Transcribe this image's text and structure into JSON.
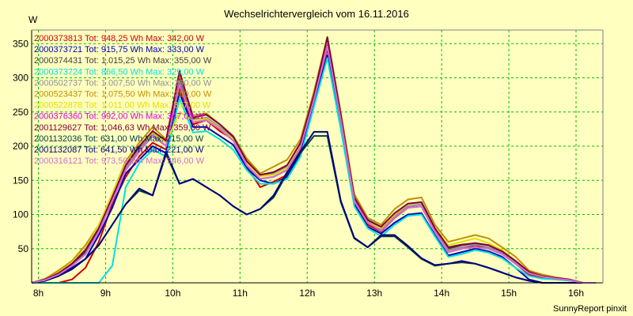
{
  "chart_data": {
    "type": "line",
    "title": "Wechselrichtervergleich vom 16.11.2016",
    "ylabel": "W",
    "xlabel": "",
    "footer": "SunnyReport pinxit",
    "ylim": [
      0,
      370
    ],
    "xlim": [
      7.9,
      16.4
    ],
    "grid": true,
    "legend_position": "top-left",
    "colors": {
      "background": "#ffffc0",
      "grid": "#00c000",
      "axis": "#000000"
    },
    "yticks": [
      {
        "value": 50,
        "label": "50"
      },
      {
        "value": 100,
        "label": "100"
      },
      {
        "value": 150,
        "label": "150"
      },
      {
        "value": 200,
        "label": "200"
      },
      {
        "value": 250,
        "label": "250"
      },
      {
        "value": 300,
        "label": "300"
      },
      {
        "value": 350,
        "label": "350"
      }
    ],
    "xticks": [
      {
        "value": 8,
        "label": "8h"
      },
      {
        "value": 9,
        "label": "9h"
      },
      {
        "value": 10,
        "label": "10h"
      },
      {
        "value": 11,
        "label": "11h"
      },
      {
        "value": 12,
        "label": "12h"
      },
      {
        "value": 13,
        "label": "13h"
      },
      {
        "value": 14,
        "label": "14h"
      },
      {
        "value": 15,
        "label": "15h"
      },
      {
        "value": 16,
        "label": "16h"
      }
    ],
    "x": [
      7.9,
      8.1,
      8.3,
      8.5,
      8.7,
      8.9,
      9.1,
      9.3,
      9.5,
      9.7,
      9.9,
      10.1,
      10.3,
      10.5,
      10.7,
      10.9,
      11.1,
      11.3,
      11.5,
      11.7,
      11.9,
      12.1,
      12.3,
      12.5,
      12.7,
      12.9,
      13.1,
      13.3,
      13.5,
      13.7,
      13.9,
      14.1,
      14.3,
      14.5,
      14.7,
      14.9,
      15.1,
      15.3,
      15.5,
      15.7,
      15.9,
      16.1,
      16.3
    ],
    "series": [
      {
        "name": "2000373813 Tot: 948,25 Wh Max: 342,00 W",
        "color": "#d00000",
        "values": [
          0,
          0,
          0,
          5,
          22,
          60,
          115,
          155,
          185,
          205,
          195,
          285,
          232,
          238,
          222,
          210,
          170,
          140,
          148,
          158,
          195,
          268,
          342,
          235,
          120,
          85,
          75,
          95,
          110,
          112,
          75,
          45,
          50,
          55,
          50,
          42,
          28,
          12,
          8,
          6,
          4,
          0,
          0
        ]
      },
      {
        "name": "2000373721 Tot: 915,75 Wh Max: 333,00 W",
        "color": "#0000c0",
        "values": [
          0,
          3,
          12,
          22,
          35,
          70,
          110,
          160,
          180,
          200,
          190,
          278,
          228,
          228,
          215,
          202,
          168,
          150,
          145,
          155,
          188,
          262,
          333,
          230,
          115,
          82,
          72,
          88,
          100,
          102,
          70,
          40,
          45,
          50,
          46,
          38,
          22,
          5,
          0,
          0,
          0,
          0,
          0
        ]
      },
      {
        "name": "2000374431 Tot: 1.015,25 Wh Max: 355,00 W",
        "color": "#404040",
        "values": [
          0,
          5,
          15,
          28,
          45,
          80,
          125,
          172,
          198,
          222,
          205,
          300,
          240,
          240,
          228,
          212,
          178,
          158,
          160,
          170,
          205,
          275,
          355,
          245,
          125,
          92,
          80,
          100,
          115,
          118,
          80,
          50,
          55,
          58,
          55,
          45,
          30,
          15,
          10,
          7,
          5,
          0,
          0
        ]
      },
      {
        "name": "2000373724 Tot: 866,50 Wh Max: 329,00 W",
        "color": "#00e0e0",
        "values": [
          0,
          0,
          0,
          0,
          0,
          0,
          25,
          140,
          175,
          195,
          185,
          270,
          220,
          222,
          210,
          195,
          165,
          145,
          145,
          152,
          185,
          258,
          329,
          225,
          112,
          80,
          68,
          85,
          98,
          100,
          68,
          38,
          42,
          48,
          44,
          36,
          22,
          10,
          6,
          5,
          3,
          0,
          0
        ]
      },
      {
        "name": "2000502737 Tot: 1.007,50 Wh Max: 360,00 W",
        "color": "#909090",
        "values": [
          0,
          4,
          12,
          25,
          42,
          75,
          120,
          168,
          195,
          218,
          200,
          295,
          238,
          242,
          228,
          212,
          176,
          158,
          160,
          170,
          202,
          272,
          360,
          242,
          122,
          90,
          78,
          98,
          112,
          115,
          78,
          48,
          52,
          56,
          52,
          44,
          30,
          14,
          10,
          7,
          4,
          0,
          0
        ]
      },
      {
        "name": "2000523437 Tot: 1.075,50 Wh Max: 360,00 W",
        "color": "#c09000",
        "values": [
          0,
          6,
          18,
          32,
          55,
          85,
          130,
          178,
          205,
          228,
          210,
          305,
          245,
          248,
          232,
          215,
          182,
          160,
          170,
          180,
          210,
          280,
          360,
          250,
          130,
          95,
          85,
          108,
          122,
          125,
          85,
          60,
          65,
          70,
          65,
          52,
          38,
          18,
          12,
          8,
          5,
          0,
          0
        ]
      },
      {
        "name": "2000522878 Tot: 1.011,00 Wh Max: 357,00 W",
        "color": "#e0e000",
        "values": [
          0,
          5,
          15,
          30,
          50,
          85,
          130,
          175,
          200,
          220,
          205,
          250,
          238,
          240,
          226,
          210,
          176,
          156,
          158,
          168,
          200,
          270,
          357,
          240,
          120,
          88,
          80,
          100,
          115,
          118,
          80,
          55,
          60,
          65,
          58,
          48,
          32,
          16,
          10,
          7,
          4,
          0,
          0
        ]
      },
      {
        "name": "2000376360 Tot: 992,00 Wh Max: 347,00 W",
        "color": "#e000e0",
        "values": [
          0,
          4,
          12,
          25,
          42,
          75,
          120,
          165,
          192,
          215,
          200,
          292,
          235,
          238,
          225,
          208,
          172,
          152,
          155,
          165,
          198,
          268,
          347,
          238,
          120,
          88,
          76,
          96,
          110,
          112,
          75,
          45,
          50,
          52,
          50,
          42,
          28,
          14,
          9,
          6,
          4,
          0,
          0
        ]
      },
      {
        "name": "2001129627 Tot: 1.046,63 Wh Max: 359,00 W",
        "color": "#800040",
        "values": [
          0,
          5,
          14,
          28,
          48,
          80,
          125,
          172,
          200,
          222,
          208,
          310,
          242,
          246,
          232,
          214,
          178,
          158,
          162,
          172,
          205,
          275,
          359,
          245,
          125,
          92,
          82,
          102,
          116,
          118,
          80,
          52,
          56,
          58,
          55,
          46,
          32,
          16,
          10,
          7,
          5,
          0,
          0
        ]
      },
      {
        "name": "2001132036 Tot: 631,00 Wh Max: 215,00 W",
        "color": "#004040",
        "values": [
          0,
          3,
          10,
          20,
          35,
          55,
          85,
          115,
          135,
          128,
          188,
          145,
          152,
          140,
          128,
          112,
          100,
          108,
          125,
          160,
          190,
          215,
          215,
          118,
          65,
          52,
          68,
          68,
          52,
          35,
          25,
          28,
          30,
          28,
          22,
          15,
          8,
          3,
          0,
          0,
          0,
          0,
          0
        ]
      },
      {
        "name": "2001132087 Tot: 641,50 Wh Max: 221,00 W",
        "color": "#000080",
        "values": [
          0,
          3,
          10,
          20,
          35,
          55,
          85,
          115,
          138,
          128,
          192,
          145,
          152,
          140,
          128,
          112,
          100,
          108,
          128,
          162,
          192,
          221,
          221,
          120,
          66,
          52,
          70,
          70,
          54,
          36,
          26,
          28,
          32,
          28,
          22,
          15,
          8,
          3,
          0,
          0,
          0,
          0,
          0
        ]
      },
      {
        "name": "2000316121 Tot: 973,50 Wh Max: 346,00 W",
        "color": "#d070d0",
        "values": [
          0,
          4,
          12,
          25,
          42,
          75,
          120,
          165,
          192,
          215,
          200,
          290,
          235,
          238,
          225,
          208,
          172,
          152,
          155,
          165,
          198,
          268,
          346,
          238,
          120,
          88,
          76,
          96,
          110,
          112,
          75,
          45,
          50,
          52,
          50,
          42,
          28,
          14,
          9,
          6,
          4,
          0,
          0
        ]
      }
    ]
  }
}
